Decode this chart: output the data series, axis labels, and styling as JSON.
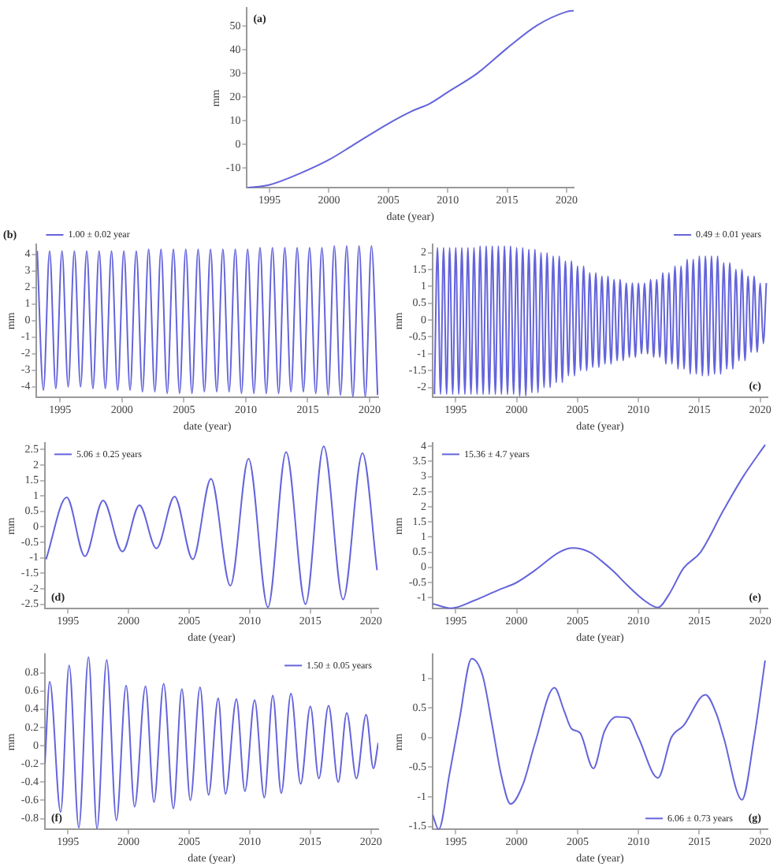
{
  "chart_data": [
    {
      "type": "line",
      "xlabel": "date (year)",
      "ylabel": "mm",
      "xlim": [
        1993.1,
        2020.6
      ],
      "ylim": [
        -18.5,
        57.5
      ],
      "xticks": [
        1995,
        2000,
        2005,
        2010,
        2015,
        2020
      ],
      "yticks": [
        -10,
        0,
        10,
        20,
        30,
        40,
        50
      ],
      "annotations": [
        "(a)"
      ],
      "series": [
        {
          "color": "#6464dc",
          "x": [
            1993.1,
            1995,
            1997.5,
            2000,
            2002,
            2005,
            2007,
            2008.5,
            2010,
            2012.5,
            2015,
            2017.5,
            2020,
            2020.6
          ],
          "values": [
            -18.5,
            -17.2,
            -12.5,
            -6.6,
            -0.5,
            8.7,
            14,
            17.2,
            22,
            30,
            40.6,
            50.2,
            56,
            56.5
          ]
        }
      ]
    },
    {
      "type": "line",
      "xlabel": "date (year)",
      "ylabel": "mm",
      "xlim": [
        1993.1,
        2020.7
      ],
      "ylim": [
        -4.65,
        4.6
      ],
      "xticks": [
        1995,
        2000,
        2005,
        2010,
        2015,
        2020
      ],
      "yticks": [
        -4,
        -3,
        -2,
        -1,
        0,
        1,
        2,
        3,
        4
      ],
      "legend": "top left",
      "annotations": [
        "(b)"
      ],
      "series": [
        {
          "name": "1.00 ± 0.02 year",
          "color": "#6464dc",
          "x": [
            1993.15,
            1993.65,
            1994.15,
            1994.65,
            1995.15,
            1995.65,
            1996.15,
            1996.65,
            1997.15,
            1997.65,
            1998.15,
            1998.65,
            1999.15,
            1999.65,
            2000.15,
            2000.65,
            2001.15,
            2001.65,
            2002.15,
            2002.65,
            2003.15,
            2003.65,
            2004.15,
            2004.65,
            2005.15,
            2005.65,
            2006.15,
            2006.65,
            2007.15,
            2007.65,
            2008.15,
            2008.65,
            2009.15,
            2009.65,
            2010.15,
            2010.65,
            2011.15,
            2011.65,
            2012.15,
            2012.65,
            2013.15,
            2013.65,
            2014.15,
            2014.65,
            2015.15,
            2015.65,
            2016.15,
            2016.65,
            2017.15,
            2017.65,
            2018.15,
            2018.65,
            2019.15,
            2019.65,
            2020.15,
            2020.65
          ],
          "values": [
            4.2,
            -4.2,
            4.2,
            -4.1,
            4.2,
            -4.0,
            4.2,
            -4.0,
            4.2,
            -4.1,
            4.2,
            -4.1,
            4.2,
            -4.2,
            4.2,
            -4.2,
            4.2,
            -4.3,
            4.3,
            -4.3,
            4.3,
            -4.4,
            4.3,
            -4.4,
            4.3,
            -4.4,
            4.3,
            -4.3,
            4.3,
            -4.3,
            4.3,
            -4.3,
            4.3,
            -4.4,
            4.3,
            -4.4,
            4.4,
            -4.4,
            4.4,
            -4.4,
            4.4,
            -4.3,
            4.4,
            -4.3,
            4.4,
            -4.4,
            4.4,
            -4.5,
            4.5,
            -4.5,
            4.5,
            -4.6,
            4.5,
            -4.6,
            4.5,
            -4.5
          ]
        }
      ]
    },
    {
      "type": "line",
      "xlabel": "date (year)",
      "ylabel": "mm",
      "xlim": [
        1993.1,
        2020.6
      ],
      "ylim": [
        -2.3,
        2.25
      ],
      "xticks": [
        1995,
        2000,
        2005,
        2010,
        2015,
        2020
      ],
      "yticks": [
        -2,
        -1.5,
        -1,
        -0.5,
        0,
        0.5,
        1,
        1.5,
        2
      ],
      "legend": "top right",
      "annotations": [
        "(c)"
      ],
      "series": [
        {
          "name": "0.49 ± 0.01 years",
          "color": "#6464dc",
          "x": [
            1993.25,
            1993.5,
            1993.75,
            1994,
            1994.25,
            1994.5,
            1994.75,
            1995,
            1995.25,
            1995.5,
            1995.75,
            1996,
            1996.25,
            1996.5,
            1996.75,
            1997,
            1997.25,
            1997.5,
            1997.75,
            1998,
            1998.25,
            1998.5,
            1998.75,
            1999,
            1999.25,
            1999.5,
            1999.75,
            2000,
            2000.25,
            2000.5,
            2000.75,
            2001,
            2001.25,
            2001.5,
            2001.75,
            2002,
            2002.25,
            2002.5,
            2002.75,
            2003,
            2003.25,
            2003.5,
            2003.75,
            2004,
            2004.25,
            2004.5,
            2004.75,
            2005,
            2005.25,
            2005.5,
            2005.75,
            2006,
            2006.25,
            2006.5,
            2006.75,
            2007,
            2007.25,
            2007.5,
            2007.75,
            2008,
            2008.25,
            2008.5,
            2008.75,
            2009,
            2009.25,
            2009.5,
            2009.75,
            2010,
            2010.25,
            2010.5,
            2010.75,
            2011,
            2011.25,
            2011.5,
            2011.75,
            2012,
            2012.25,
            2012.5,
            2012.75,
            2013,
            2013.25,
            2013.5,
            2013.75,
            2014,
            2014.25,
            2014.5,
            2014.75,
            2015,
            2015.25,
            2015.5,
            2015.75,
            2016,
            2016.25,
            2016.5,
            2016.75,
            2017,
            2017.25,
            2017.5,
            2017.75,
            2018,
            2018.25,
            2018.5,
            2018.75,
            2019,
            2019.25,
            2019.5,
            2019.75,
            2020,
            2020.25,
            2020.5
          ],
          "values": [
            -2.2,
            2.15,
            -2.2,
            2.15,
            -2.2,
            2.15,
            -2.2,
            2.15,
            -2.2,
            2.15,
            -2.2,
            2.15,
            -2.2,
            2.15,
            -2.2,
            2.2,
            -2.2,
            2.2,
            -2.2,
            2.2,
            -2.2,
            2.2,
            -2.2,
            2.2,
            -2.2,
            2.2,
            -2.2,
            2.15,
            -2.25,
            2.15,
            -2.25,
            2.1,
            -2.15,
            2.1,
            -2.15,
            2.0,
            -2.0,
            2.0,
            -2.0,
            1.9,
            -1.85,
            1.9,
            -1.85,
            1.75,
            -1.65,
            1.75,
            -1.65,
            1.6,
            -1.5,
            1.6,
            -1.5,
            1.4,
            -1.4,
            1.4,
            -1.4,
            1.3,
            -1.3,
            1.3,
            -1.3,
            1.2,
            -1.2,
            1.2,
            -1.2,
            1.1,
            -1.1,
            1.1,
            -1.1,
            1.1,
            -1.0,
            1.1,
            -1.0,
            1.2,
            -1.1,
            1.2,
            -1.1,
            1.4,
            -1.3,
            1.4,
            -1.3,
            1.6,
            -1.45,
            1.6,
            -1.45,
            1.8,
            -1.6,
            1.8,
            -1.6,
            1.9,
            -1.65,
            1.9,
            -1.65,
            1.9,
            -1.6,
            1.9,
            -1.6,
            1.7,
            -1.45,
            1.7,
            -1.45,
            1.5,
            -1.2,
            1.5,
            -1.2,
            1.3,
            -0.95,
            1.3,
            -0.95,
            1.1,
            -0.7,
            1.1
          ]
        }
      ]
    },
    {
      "type": "line",
      "xlabel": "date (year)",
      "ylabel": "mm",
      "xlim": [
        1993.1,
        2020.6
      ],
      "ylim": [
        -2.65,
        2.7
      ],
      "xticks": [
        1995,
        2000,
        2005,
        2010,
        2015,
        2020
      ],
      "yticks": [
        -2.5,
        -2,
        -1.5,
        -1,
        -0.5,
        0,
        0.5,
        1,
        1.5,
        2,
        2.5
      ],
      "legend": "top left",
      "annotations": [
        "(d)"
      ],
      "series": [
        {
          "name": "5.06 ± 0.25 years",
          "color": "#6464dc",
          "x": [
            1993.2,
            1994.9,
            1996.4,
            1997.9,
            1999.5,
            2000.9,
            2002.3,
            2003.8,
            2005.3,
            2006.8,
            2008.4,
            2009.9,
            2011.5,
            2013.0,
            2014.6,
            2016.1,
            2017.7,
            2019.3,
            2020.5
          ],
          "values": [
            -1.05,
            0.95,
            -0.95,
            0.85,
            -0.8,
            0.7,
            -0.7,
            0.98,
            -1.05,
            1.55,
            -1.9,
            2.2,
            -2.6,
            2.42,
            -2.5,
            2.6,
            -2.35,
            2.38,
            -1.4
          ]
        }
      ]
    },
    {
      "type": "line",
      "xlabel": "date (year)",
      "ylabel": "mm",
      "xlim": [
        1993.1,
        2020.6
      ],
      "ylim": [
        -1.37,
        4.1
      ],
      "xticks": [
        1995,
        2000,
        2005,
        2010,
        2015,
        2020
      ],
      "yticks": [
        -1,
        -0.5,
        0,
        0.5,
        1,
        1.5,
        2,
        2.5,
        3,
        3.5,
        4
      ],
      "legend": "top left",
      "annotations": [
        "(e)"
      ],
      "series": [
        {
          "name": "15.36 ± 4.7 years",
          "color": "#6464dc",
          "x": [
            1993.1,
            1994.6,
            1996.5,
            1998.5,
            2000,
            2001.5,
            2003.5,
            2004.6,
            2006,
            2007,
            2008,
            2009,
            2010.5,
            2011.6,
            2012.5,
            2013.7,
            2015.1,
            2017,
            2018.6,
            2020.4
          ],
          "values": [
            -1.2,
            -1.35,
            -1.1,
            -0.75,
            -0.5,
            -0.1,
            0.5,
            0.64,
            0.5,
            0.2,
            -0.15,
            -0.56,
            -1.1,
            -1.33,
            -0.9,
            -0.03,
            0.5,
            1.9,
            3.0,
            4.05
          ]
        }
      ]
    },
    {
      "type": "line",
      "xlabel": "date (year)",
      "ylabel": "mm",
      "xlim": [
        1993.1,
        2020.6
      ],
      "ylim": [
        -0.92,
        1.0
      ],
      "xticks": [
        1995,
        2000,
        2005,
        2010,
        2015,
        2020
      ],
      "yticks": [
        -0.8,
        -0.6,
        -0.4,
        -0.2,
        0,
        0.2,
        0.4,
        0.6,
        0.8
      ],
      "legend": "top right",
      "annotations": [
        "(f)"
      ],
      "series": [
        {
          "name": "1.50 ± 0.05 years",
          "color": "#6464dc",
          "x": [
            1993.1,
            1993.5,
            1994.4,
            1995.1,
            1995.9,
            1996.7,
            1997.4,
            1998.2,
            1999.0,
            1999.8,
            2000.5,
            2001.4,
            2002.1,
            2002.9,
            2003.7,
            2004.4,
            2005.1,
            2005.9,
            2006.6,
            2007.4,
            2008.0,
            2008.9,
            2009.6,
            2010.4,
            2011.2,
            2011.9,
            2012.6,
            2013.4,
            2014.2,
            2015.0,
            2015.7,
            2016.5,
            2017.3,
            2018.0,
            2018.8,
            2019.6,
            2020.2,
            2020.6
          ],
          "values": [
            -0.2,
            0.7,
            -0.73,
            0.88,
            -0.9,
            0.97,
            -0.91,
            0.94,
            -0.82,
            0.66,
            -0.67,
            0.65,
            -0.62,
            0.68,
            -0.69,
            0.62,
            -0.6,
            0.64,
            -0.54,
            0.52,
            -0.53,
            0.51,
            -0.5,
            0.5,
            -0.57,
            0.55,
            -0.52,
            0.57,
            -0.42,
            0.43,
            -0.36,
            0.44,
            -0.4,
            0.36,
            -0.36,
            0.34,
            -0.25,
            0.03
          ]
        }
      ]
    },
    {
      "type": "line",
      "xlabel": "date (year)",
      "ylabel": "mm",
      "xlim": [
        1993.1,
        2020.6
      ],
      "ylim": [
        -1.55,
        1.4
      ],
      "xticks": [
        1995,
        2000,
        2005,
        2010,
        2015,
        2020
      ],
      "yticks": [
        -1.5,
        -1,
        -0.5,
        0,
        0.5,
        1
      ],
      "legend": "bottom right",
      "annotations": [
        "(g)"
      ],
      "series": [
        {
          "name": "6.06 ± 0.73 years",
          "color": "#6464dc",
          "x": [
            1993.1,
            1993.6,
            1994.5,
            1995.3,
            1996.3,
            1997.2,
            1998.0,
            1998.7,
            1999.5,
            2000.5,
            2001.5,
            2003.1,
            2003.9,
            2004.5,
            2005.2,
            2006.3,
            2007.2,
            2008.2,
            2009.2,
            2010.0,
            2011.6,
            2012.7,
            2013.7,
            2015.5,
            2016.4,
            2017.0,
            2018.5,
            2019.5,
            2020.4
          ],
          "values": [
            -1.3,
            -1.55,
            -0.6,
            0.3,
            1.33,
            1.05,
            0.2,
            -0.6,
            -1.12,
            -0.8,
            -0.1,
            0.84,
            0.45,
            0.15,
            0.08,
            -0.52,
            0.1,
            0.35,
            0.33,
            0,
            -0.68,
            0,
            0.2,
            0.72,
            0.4,
            0,
            -1.05,
            0,
            1.3
          ]
        }
      ]
    }
  ]
}
